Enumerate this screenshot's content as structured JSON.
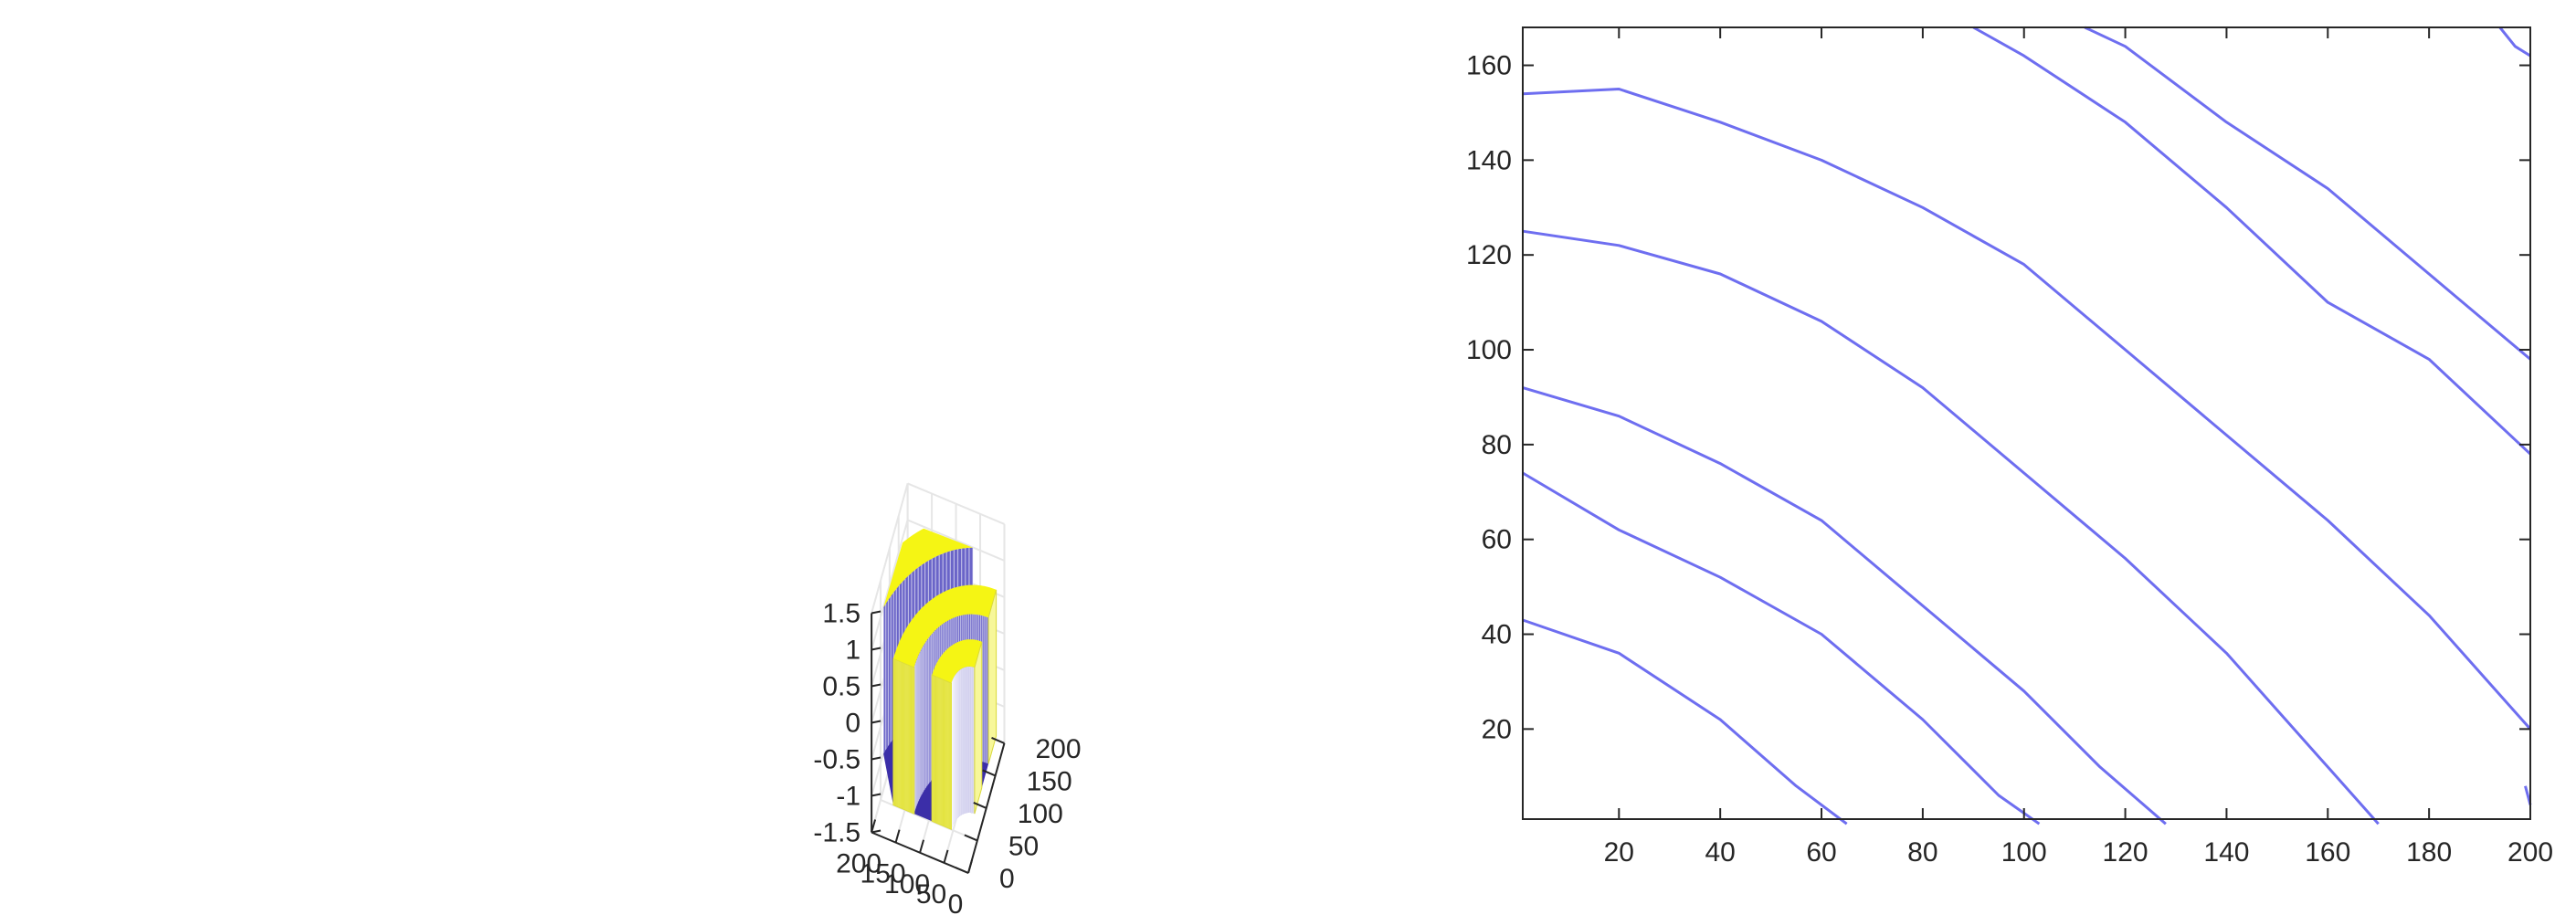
{
  "chart_data": [
    {
      "type": "surface",
      "title": "",
      "xlabel": "",
      "ylabel": "",
      "zlabel": "",
      "x_range": [
        0,
        200
      ],
      "y_range": [
        0,
        200
      ],
      "z_range": [
        -1.5,
        1.5
      ],
      "x_ticks": [
        0,
        50,
        100,
        150,
        200
      ],
      "x_tick_labels": [
        "0",
        "50",
        "100",
        "150",
        "200"
      ],
      "y_ticks": [
        0,
        50,
        100,
        150,
        200
      ],
      "y_tick_labels": [
        "0",
        "50",
        "100",
        "150",
        "200"
      ],
      "z_ticks": [
        -1.5,
        -1,
        -0.5,
        0,
        0.5,
        1,
        1.5
      ],
      "z_tick_labels": [
        "-1.5",
        "-1",
        "-0.5",
        "0",
        "0.5",
        "1",
        "1.5"
      ],
      "grid": true,
      "levels": [
        -1,
        1
      ],
      "colors": {
        "high": "#f5f514",
        "low": "#3b2ea8",
        "wall": "#6a64c8"
      },
      "bands": [
        {
          "level": 1,
          "band_low": 35,
          "band_high": 75
        },
        {
          "level": -1,
          "band_low": 75,
          "band_high": 112
        },
        {
          "level": 1,
          "band_low": 112,
          "band_high": 155
        },
        {
          "level": -1,
          "band_low": 155,
          "band_high": 210
        },
        {
          "level": 1,
          "band_low": 210,
          "band_high": 258
        }
      ]
    },
    {
      "type": "contour",
      "title": "",
      "xlabel": "",
      "ylabel": "",
      "x_range": [
        1,
        200
      ],
      "y_range": [
        1,
        168
      ],
      "x_ticks": [
        20,
        40,
        60,
        80,
        100,
        120,
        140,
        160,
        180,
        200
      ],
      "x_tick_labels": [
        "20",
        "40",
        "60",
        "80",
        "100",
        "120",
        "140",
        "160",
        "180",
        "200"
      ],
      "y_ticks": [
        20,
        40,
        60,
        80,
        100,
        120,
        140,
        160
      ],
      "y_tick_labels": [
        "20",
        "40",
        "60",
        "80",
        "100",
        "120",
        "140",
        "160"
      ],
      "grid": false,
      "line_color": "#6e6ef0",
      "contours": [
        {
          "x": [
            1,
            20,
            40,
            55,
            65
          ],
          "y": [
            43,
            36,
            22,
            8,
            0
          ]
        },
        {
          "x": [
            1,
            20,
            40,
            60,
            80,
            95,
            103
          ],
          "y": [
            74,
            62,
            52,
            40,
            22,
            6,
            0
          ]
        },
        {
          "x": [
            1,
            20,
            40,
            60,
            80,
            100,
            115,
            128
          ],
          "y": [
            92,
            86,
            76,
            64,
            46,
            28,
            12,
            0
          ]
        },
        {
          "x": [
            1,
            20,
            40,
            60,
            80,
            100,
            120,
            140,
            160,
            170
          ],
          "y": [
            125,
            122,
            116,
            106,
            92,
            74,
            56,
            36,
            12,
            0
          ]
        },
        {
          "x": [
            1,
            20,
            40,
            60,
            80,
            100,
            120,
            140,
            160,
            180,
            200
          ],
          "y": [
            154,
            155,
            148,
            140,
            130,
            118,
            100,
            82,
            64,
            44,
            20
          ]
        },
        {
          "x": [
            90,
            100,
            120,
            140,
            160,
            180,
            200
          ],
          "y": [
            168,
            162,
            148,
            130,
            110,
            98,
            78
          ]
        },
        {
          "x": [
            112,
            120,
            140,
            160,
            180,
            200
          ],
          "y": [
            168,
            164,
            148,
            134,
            116,
            98
          ]
        },
        {
          "x": [
            194,
            197,
            200
          ],
          "y": [
            168,
            164,
            162
          ]
        },
        {
          "x": [
            199,
            200
          ],
          "y": [
            8,
            4
          ]
        }
      ]
    }
  ]
}
